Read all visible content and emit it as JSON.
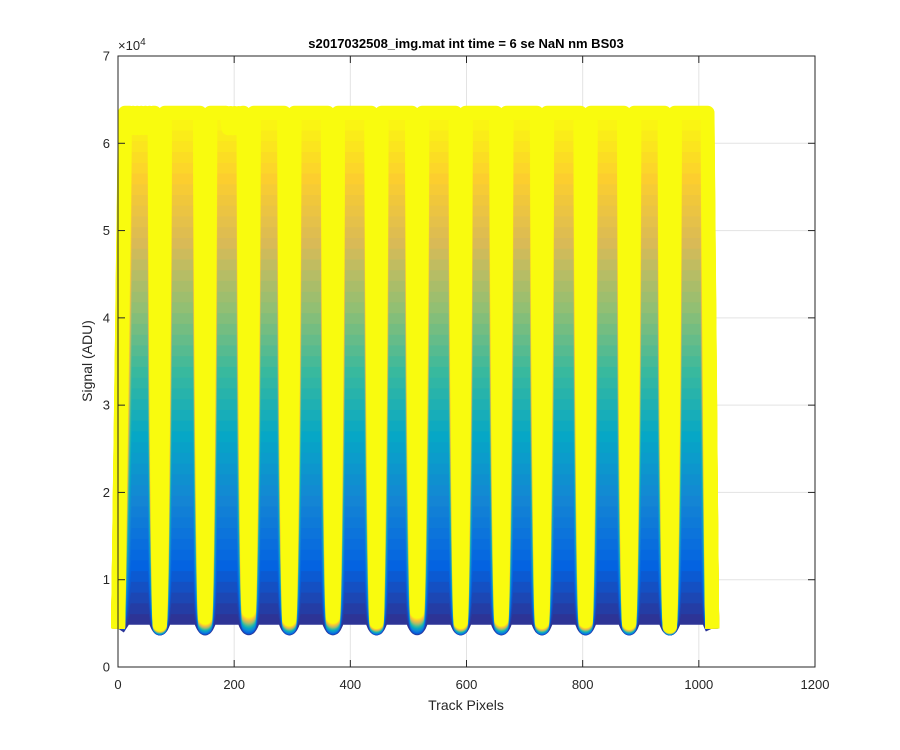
{
  "chart_data": {
    "type": "line",
    "title": "s2017032508_img.mat int time = 6 se  NaN nm BS03",
    "xlabel": "Track Pixels",
    "ylabel": "Signal (ADU)",
    "xlim": [
      0,
      1200
    ],
    "ylim": [
      0,
      70000
    ],
    "xticks": [
      0,
      200,
      400,
      600,
      800,
      1000,
      1200
    ],
    "xtick_labels": [
      "0",
      "200",
      "400",
      "600",
      "800",
      "1000",
      "1200"
    ],
    "yticks": [
      0,
      10000,
      20000,
      30000,
      40000,
      50000,
      60000,
      70000
    ],
    "ytick_labels": [
      "0",
      "1",
      "2",
      "3",
      "4",
      "5",
      "6",
      "7"
    ],
    "y_exponent_label": "×10",
    "y_exponent_power": "4",
    "grid": true,
    "colormap": [
      "#352a87",
      "#0363e1",
      "#1485d4",
      "#06a7c6",
      "#38b99e",
      "#92bf73",
      "#d9ba56",
      "#fcce2e",
      "#f9fb0e"
    ],
    "num_curves": 48,
    "baseline": 4400,
    "peak_max": 63500,
    "x_end": 1023,
    "gaps": [
      {
        "x": 72,
        "min": 4900
      },
      {
        "x": 150,
        "min": 5700
      },
      {
        "x": 225,
        "min": 6500
      },
      {
        "x": 295,
        "min": 5500
      },
      {
        "x": 370,
        "min": 5800
      },
      {
        "x": 445,
        "min": 5200
      },
      {
        "x": 515,
        "min": 6400
      },
      {
        "x": 590,
        "min": 5200
      },
      {
        "x": 660,
        "min": 5500
      },
      {
        "x": 730,
        "min": 5200
      },
      {
        "x": 805,
        "min": 5300
      },
      {
        "x": 880,
        "min": 5100
      },
      {
        "x": 950,
        "min": 4700
      }
    ]
  }
}
